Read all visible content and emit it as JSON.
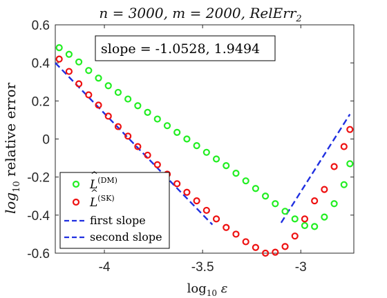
{
  "chart_data": {
    "type": "scatter",
    "title": "n = 3000, m = 2000, RelErr",
    "title_subscript": "2",
    "xlabel": "log",
    "xlabel_sub": "10",
    "xlabel_tail": " ε",
    "ylabel": "log",
    "ylabel_sub": "10",
    "ylabel_tail": " relative error",
    "xlim": [
      -4.25,
      -2.73
    ],
    "ylim": [
      -0.6,
      0.6
    ],
    "xticks": [
      -4,
      -3.5,
      -3
    ],
    "xtick_labels": [
      "-4",
      "-3.5",
      "-3"
    ],
    "yticks": [
      -0.6,
      -0.4,
      -0.2,
      0,
      0.2,
      0.4,
      0.6
    ],
    "ytick_labels": [
      "-0.6",
      "-0.4",
      "-0.2",
      "0",
      "0.2",
      "0.4",
      "0.6"
    ],
    "annotation": "slope = -1.0528, 1.9494",
    "legend_placement": "bottom-left",
    "legend": [
      {
        "hat": "L",
        "sup": "(DM)",
        "kind": "marker",
        "color": "#22ee22"
      },
      {
        "hat": "L",
        "sup": "(SK)",
        "kind": "marker",
        "color": "#ee1111"
      },
      {
        "label": "first slope",
        "kind": "dash",
        "color": "#1f2fe0"
      },
      {
        "label": "second slope",
        "kind": "dash",
        "color": "#1f2fe0"
      }
    ],
    "series": [
      {
        "key": "DM",
        "color": "#22ee22",
        "x": [
          -4.23,
          -4.18,
          -4.13,
          -4.08,
          -4.03,
          -3.98,
          -3.93,
          -3.88,
          -3.83,
          -3.78,
          -3.73,
          -3.68,
          -3.63,
          -3.58,
          -3.53,
          -3.48,
          -3.43,
          -3.38,
          -3.33,
          -3.28,
          -3.23,
          -3.18,
          -3.13,
          -3.08,
          -3.03,
          -2.98,
          -2.93,
          -2.88,
          -2.83,
          -2.78,
          -2.75
        ],
        "y": [
          0.48,
          0.445,
          0.405,
          0.36,
          0.32,
          0.28,
          0.245,
          0.21,
          0.175,
          0.14,
          0.105,
          0.07,
          0.035,
          0.0,
          -0.035,
          -0.07,
          -0.105,
          -0.14,
          -0.18,
          -0.22,
          -0.26,
          -0.3,
          -0.34,
          -0.38,
          -0.42,
          -0.455,
          -0.46,
          -0.41,
          -0.34,
          -0.24,
          -0.13
        ]
      },
      {
        "key": "SK",
        "color": "#ee1111",
        "x": [
          -4.23,
          -4.18,
          -4.13,
          -4.08,
          -4.03,
          -3.98,
          -3.93,
          -3.88,
          -3.83,
          -3.78,
          -3.73,
          -3.68,
          -3.63,
          -3.58,
          -3.53,
          -3.48,
          -3.43,
          -3.38,
          -3.33,
          -3.28,
          -3.23,
          -3.18,
          -3.13,
          -3.08,
          -3.03,
          -2.98,
          -2.93,
          -2.88,
          -2.83,
          -2.78,
          -2.75
        ],
        "y": [
          0.42,
          0.355,
          0.29,
          0.232,
          0.178,
          0.12,
          0.065,
          0.015,
          -0.04,
          -0.085,
          -0.135,
          -0.185,
          -0.235,
          -0.28,
          -0.325,
          -0.375,
          -0.42,
          -0.465,
          -0.5,
          -0.54,
          -0.57,
          -0.6,
          -0.595,
          -0.565,
          -0.51,
          -0.42,
          -0.325,
          -0.265,
          -0.145,
          -0.04,
          0.05
        ]
      }
    ],
    "fit_lines": [
      {
        "key": "first",
        "color": "#1f2fe0",
        "x": [
          -4.25,
          -3.45
        ],
        "y": [
          0.4,
          -0.45
        ]
      },
      {
        "key": "second",
        "color": "#1f2fe0",
        "x": [
          -3.1,
          -2.75
        ],
        "y": [
          -0.44,
          0.13
        ]
      }
    ]
  }
}
